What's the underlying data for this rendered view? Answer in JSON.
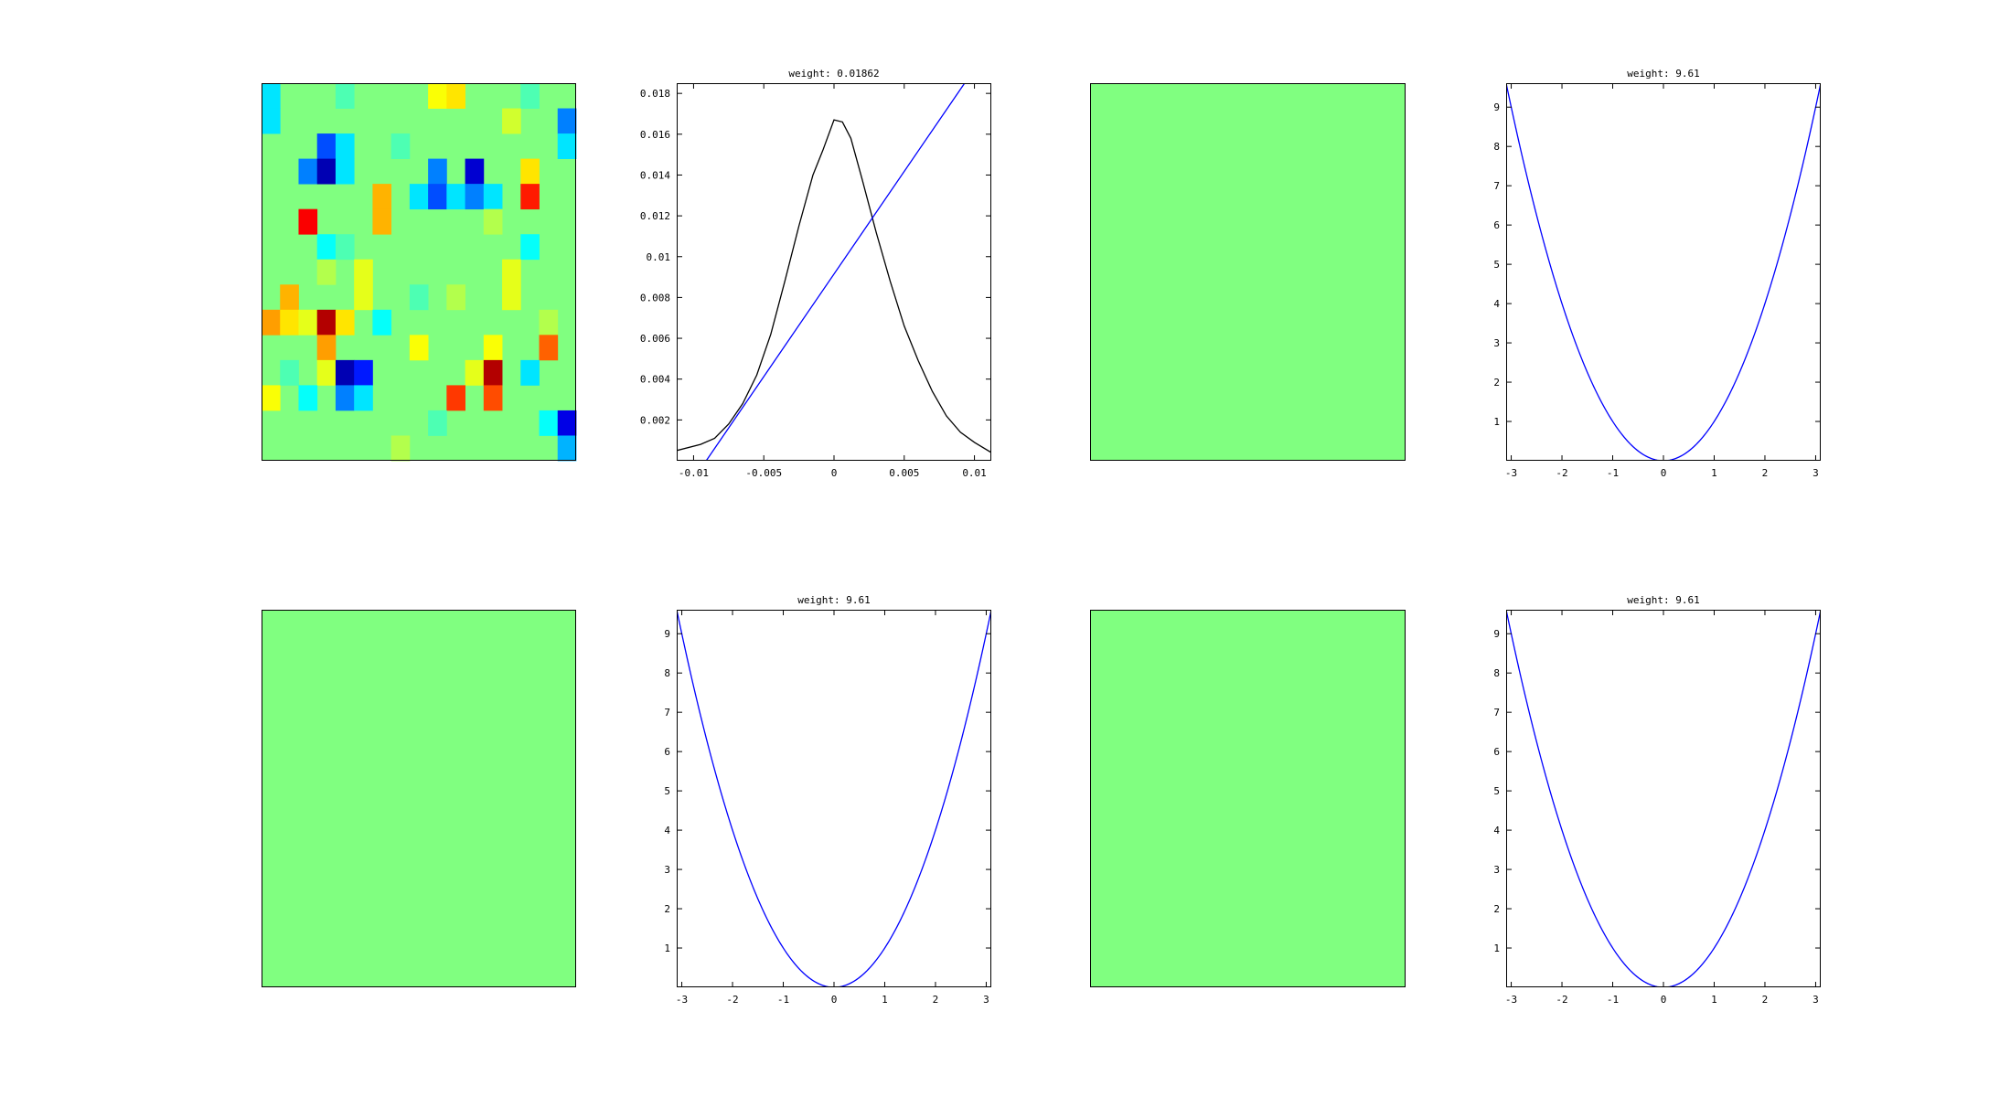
{
  "chart_data": [
    {
      "type": "heatmap",
      "colormap": "jet",
      "rows": 15,
      "cols": 17,
      "cells": [
        {
          "r": 0,
          "c": 0,
          "v": 0.35
        },
        {
          "r": 0,
          "c": 4,
          "v": 0.45
        },
        {
          "r": 0,
          "c": 9,
          "v": 0.62
        },
        {
          "r": 0,
          "c": 10,
          "v": 0.65
        },
        {
          "r": 0,
          "c": 14,
          "v": 0.45
        },
        {
          "r": 1,
          "c": 0,
          "v": 0.35
        },
        {
          "r": 1,
          "c": 13,
          "v": 0.58
        },
        {
          "r": 1,
          "c": 16,
          "v": 0.25
        },
        {
          "r": 2,
          "c": 3,
          "v": 0.2
        },
        {
          "r": 2,
          "c": 4,
          "v": 0.35
        },
        {
          "r": 2,
          "c": 7,
          "v": 0.45
        },
        {
          "r": 2,
          "c": 16,
          "v": 0.35
        },
        {
          "r": 3,
          "c": 2,
          "v": 0.25
        },
        {
          "r": 3,
          "c": 3,
          "v": 0.05
        },
        {
          "r": 3,
          "c": 4,
          "v": 0.35
        },
        {
          "r": 3,
          "c": 9,
          "v": 0.25
        },
        {
          "r": 3,
          "c": 11,
          "v": 0.08
        },
        {
          "r": 3,
          "c": 14,
          "v": 0.65
        },
        {
          "r": 4,
          "c": 6,
          "v": 0.7
        },
        {
          "r": 4,
          "c": 8,
          "v": 0.35
        },
        {
          "r": 4,
          "c": 9,
          "v": 0.2
        },
        {
          "r": 4,
          "c": 10,
          "v": 0.35
        },
        {
          "r": 4,
          "c": 11,
          "v": 0.25
        },
        {
          "r": 4,
          "c": 12,
          "v": 0.35
        },
        {
          "r": 4,
          "c": 14,
          "v": 0.85
        },
        {
          "r": 5,
          "c": 2,
          "v": 0.88
        },
        {
          "r": 5,
          "c": 6,
          "v": 0.7
        },
        {
          "r": 5,
          "c": 12,
          "v": 0.55
        },
        {
          "r": 6,
          "c": 3,
          "v": 0.38
        },
        {
          "r": 6,
          "c": 4,
          "v": 0.45
        },
        {
          "r": 6,
          "c": 14,
          "v": 0.38
        },
        {
          "r": 7,
          "c": 3,
          "v": 0.55
        },
        {
          "r": 7,
          "c": 5,
          "v": 0.6
        },
        {
          "r": 7,
          "c": 13,
          "v": 0.6
        },
        {
          "r": 8,
          "c": 1,
          "v": 0.7
        },
        {
          "r": 8,
          "c": 5,
          "v": 0.6
        },
        {
          "r": 8,
          "c": 8,
          "v": 0.45
        },
        {
          "r": 8,
          "c": 10,
          "v": 0.55
        },
        {
          "r": 8,
          "c": 13,
          "v": 0.6
        },
        {
          "r": 9,
          "c": 0,
          "v": 0.72
        },
        {
          "r": 9,
          "c": 1,
          "v": 0.65
        },
        {
          "r": 9,
          "c": 2,
          "v": 0.6
        },
        {
          "r": 9,
          "c": 3,
          "v": 0.95
        },
        {
          "r": 9,
          "c": 4,
          "v": 0.65
        },
        {
          "r": 9,
          "c": 6,
          "v": 0.38
        },
        {
          "r": 9,
          "c": 15,
          "v": 0.55
        },
        {
          "r": 10,
          "c": 3,
          "v": 0.72
        },
        {
          "r": 10,
          "c": 8,
          "v": 0.62
        },
        {
          "r": 10,
          "c": 12,
          "v": 0.62
        },
        {
          "r": 10,
          "c": 15,
          "v": 0.78
        },
        {
          "r": 11,
          "c": 1,
          "v": 0.45
        },
        {
          "r": 11,
          "c": 3,
          "v": 0.6
        },
        {
          "r": 11,
          "c": 4,
          "v": 0.05
        },
        {
          "r": 11,
          "c": 5,
          "v": 0.15
        },
        {
          "r": 11,
          "c": 11,
          "v": 0.6
        },
        {
          "r": 11,
          "c": 12,
          "v": 0.95
        },
        {
          "r": 11,
          "c": 14,
          "v": 0.35
        },
        {
          "r": 12,
          "c": 0,
          "v": 0.62
        },
        {
          "r": 12,
          "c": 2,
          "v": 0.38
        },
        {
          "r": 12,
          "c": 4,
          "v": 0.25
        },
        {
          "r": 12,
          "c": 5,
          "v": 0.35
        },
        {
          "r": 12,
          "c": 10,
          "v": 0.82
        },
        {
          "r": 12,
          "c": 12,
          "v": 0.8
        },
        {
          "r": 13,
          "c": 9,
          "v": 0.45
        },
        {
          "r": 13,
          "c": 15,
          "v": 0.38
        },
        {
          "r": 13,
          "c": 16,
          "v": 0.1
        },
        {
          "r": 14,
          "c": 7,
          "v": 0.55
        },
        {
          "r": 14,
          "c": 16,
          "v": 0.3
        }
      ]
    },
    {
      "type": "line",
      "title": "weight: 0.01862",
      "xlim": [
        -0.0112,
        0.0112
      ],
      "ylim": [
        0,
        0.0185
      ],
      "xticks": [
        {
          "v": -0.01,
          "label": "-0.01"
        },
        {
          "v": -0.005,
          "label": "-0.005"
        },
        {
          "v": 0,
          "label": "0"
        },
        {
          "v": 0.005,
          "label": "0.005"
        },
        {
          "v": 0.01,
          "label": "0.01"
        }
      ],
      "yticks": [
        {
          "v": 0.002,
          "label": "0.002"
        },
        {
          "v": 0.004,
          "label": "0.004"
        },
        {
          "v": 0.006,
          "label": "0.006"
        },
        {
          "v": 0.008,
          "label": "0.008"
        },
        {
          "v": 0.01,
          "label": "0.01"
        },
        {
          "v": 0.012,
          "label": "0.012"
        },
        {
          "v": 0.014,
          "label": "0.014"
        },
        {
          "v": 0.016,
          "label": "0.016"
        },
        {
          "v": 0.018,
          "label": "0.018"
        }
      ],
      "series": [
        {
          "color": "#000000",
          "x": [
            -0.0112,
            -0.0095,
            -0.0085,
            -0.0075,
            -0.0065,
            -0.0055,
            -0.0045,
            -0.0035,
            -0.0025,
            -0.0015,
            -0.0008,
            0,
            0.0006,
            0.0012,
            0.002,
            0.003,
            0.004,
            0.005,
            0.006,
            0.007,
            0.008,
            0.009,
            0.01,
            0.0112
          ],
          "y": [
            0.0005,
            0.0008,
            0.0011,
            0.0018,
            0.0028,
            0.0042,
            0.0062,
            0.0088,
            0.0115,
            0.014,
            0.0152,
            0.0167,
            0.0166,
            0.0158,
            0.0138,
            0.0112,
            0.0088,
            0.0066,
            0.0049,
            0.0034,
            0.0022,
            0.0014,
            0.0009,
            0.0004
          ]
        },
        {
          "color": "#0000ff",
          "x": [
            -0.0091,
            0.0093
          ],
          "y": [
            0,
            0.0185
          ]
        }
      ]
    },
    {
      "type": "heatmap",
      "colormap": "jet",
      "rows": 1,
      "cols": 1,
      "cells": []
    },
    {
      "type": "line",
      "title": "weight: 9.61",
      "xlim": [
        -3.1,
        3.1
      ],
      "ylim": [
        0,
        9.61
      ],
      "xticks": [
        {
          "v": -3,
          "label": "-3"
        },
        {
          "v": -2,
          "label": "-2"
        },
        {
          "v": -1,
          "label": "-1"
        },
        {
          "v": 0,
          "label": "0"
        },
        {
          "v": 1,
          "label": "1"
        },
        {
          "v": 2,
          "label": "2"
        },
        {
          "v": 3,
          "label": "3"
        }
      ],
      "yticks": [
        {
          "v": 1,
          "label": "1"
        },
        {
          "v": 2,
          "label": "2"
        },
        {
          "v": 3,
          "label": "3"
        },
        {
          "v": 4,
          "label": "4"
        },
        {
          "v": 5,
          "label": "5"
        },
        {
          "v": 6,
          "label": "6"
        },
        {
          "v": 7,
          "label": "7"
        },
        {
          "v": 8,
          "label": "8"
        },
        {
          "v": 9,
          "label": "9"
        }
      ],
      "series": [
        {
          "color": "#0000ff",
          "function": "x^2"
        }
      ]
    },
    {
      "type": "heatmap",
      "colormap": "jet",
      "rows": 1,
      "cols": 1,
      "cells": []
    },
    {
      "type": "line",
      "title": "weight: 9.61",
      "xlim": [
        -3.1,
        3.1
      ],
      "ylim": [
        0,
        9.61
      ],
      "xticks": [
        {
          "v": -3,
          "label": "-3"
        },
        {
          "v": -2,
          "label": "-2"
        },
        {
          "v": -1,
          "label": "-1"
        },
        {
          "v": 0,
          "label": "0"
        },
        {
          "v": 1,
          "label": "1"
        },
        {
          "v": 2,
          "label": "2"
        },
        {
          "v": 3,
          "label": "3"
        }
      ],
      "yticks": [
        {
          "v": 1,
          "label": "1"
        },
        {
          "v": 2,
          "label": "2"
        },
        {
          "v": 3,
          "label": "3"
        },
        {
          "v": 4,
          "label": "4"
        },
        {
          "v": 5,
          "label": "5"
        },
        {
          "v": 6,
          "label": "6"
        },
        {
          "v": 7,
          "label": "7"
        },
        {
          "v": 8,
          "label": "8"
        },
        {
          "v": 9,
          "label": "9"
        }
      ],
      "series": [
        {
          "color": "#0000ff",
          "function": "x^2"
        }
      ]
    },
    {
      "type": "heatmap",
      "colormap": "jet",
      "rows": 1,
      "cols": 1,
      "cells": []
    },
    {
      "type": "line",
      "title": "weight: 9.61",
      "xlim": [
        -3.1,
        3.1
      ],
      "ylim": [
        0,
        9.61
      ],
      "xticks": [
        {
          "v": -3,
          "label": "-3"
        },
        {
          "v": -2,
          "label": "-2"
        },
        {
          "v": -1,
          "label": "-1"
        },
        {
          "v": 0,
          "label": "0"
        },
        {
          "v": 1,
          "label": "1"
        },
        {
          "v": 2,
          "label": "2"
        },
        {
          "v": 3,
          "label": "3"
        }
      ],
      "yticks": [
        {
          "v": 1,
          "label": "1"
        },
        {
          "v": 2,
          "label": "2"
        },
        {
          "v": 3,
          "label": "3"
        },
        {
          "v": 4,
          "label": "4"
        },
        {
          "v": 5,
          "label": "5"
        },
        {
          "v": 6,
          "label": "6"
        },
        {
          "v": 7,
          "label": "7"
        },
        {
          "v": 8,
          "label": "8"
        },
        {
          "v": 9,
          "label": "9"
        }
      ],
      "series": [
        {
          "color": "#0000ff",
          "function": "x^2"
        }
      ]
    }
  ]
}
